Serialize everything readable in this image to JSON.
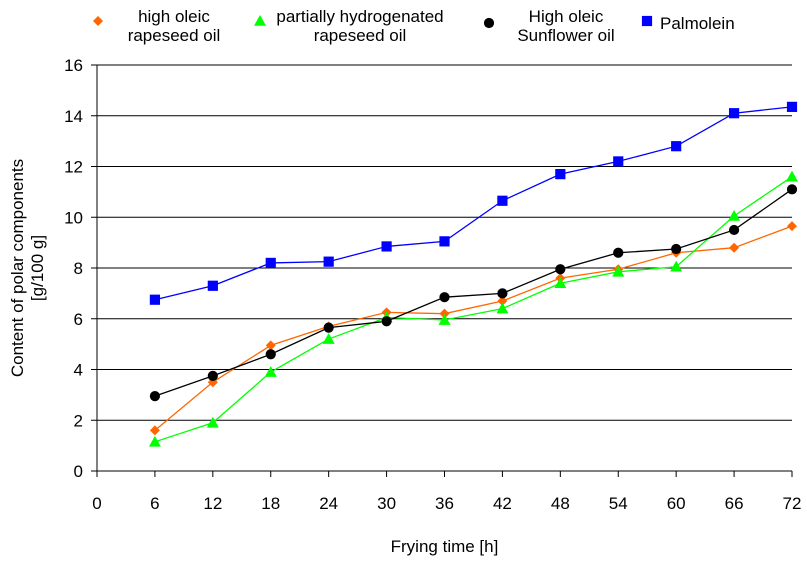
{
  "chart_data": {
    "type": "line",
    "title": "",
    "xlabel": "Frying time [h]",
    "ylabel_lines": [
      "Content of polar components",
      "[g/100 g]"
    ],
    "xlim": [
      0,
      72
    ],
    "ylim": [
      0,
      16
    ],
    "xticks": [
      0,
      6,
      12,
      18,
      24,
      30,
      36,
      42,
      48,
      54,
      60,
      66,
      72
    ],
    "yticks": [
      0,
      2,
      4,
      6,
      8,
      10,
      12,
      14,
      16
    ],
    "grid": "horizontal",
    "legend_position": "top",
    "x": [
      6,
      12,
      18,
      24,
      30,
      36,
      42,
      48,
      54,
      60,
      66,
      72
    ],
    "series": [
      {
        "name_lines": [
          "high oleic",
          "rapeseed oil"
        ],
        "color": "#ff6600",
        "marker": "diamond",
        "values": [
          1.6,
          3.5,
          4.95,
          5.7,
          6.25,
          6.2,
          6.7,
          7.6,
          7.95,
          8.6,
          8.8,
          9.65
        ]
      },
      {
        "name_lines": [
          "partially hydrogenated",
          "rapeseed oil"
        ],
        "color": "#00ff00",
        "marker": "triangle",
        "values": [
          1.15,
          1.9,
          3.9,
          5.2,
          6.05,
          5.95,
          6.4,
          7.4,
          7.85,
          8.05,
          10.05,
          11.6
        ]
      },
      {
        "name_lines": [
          "High oleic",
          "Sunflower oil"
        ],
        "color": "#000000",
        "marker": "circle",
        "values": [
          2.95,
          3.75,
          4.6,
          5.65,
          5.9,
          6.85,
          7.0,
          7.95,
          8.6,
          8.75,
          9.5,
          11.1
        ]
      },
      {
        "name_lines": [
          "Palmolein"
        ],
        "color": "#0000ff",
        "marker": "square",
        "values": [
          6.75,
          7.3,
          8.2,
          8.25,
          8.85,
          9.05,
          10.65,
          11.7,
          12.2,
          12.8,
          14.1,
          14.35
        ]
      }
    ]
  }
}
